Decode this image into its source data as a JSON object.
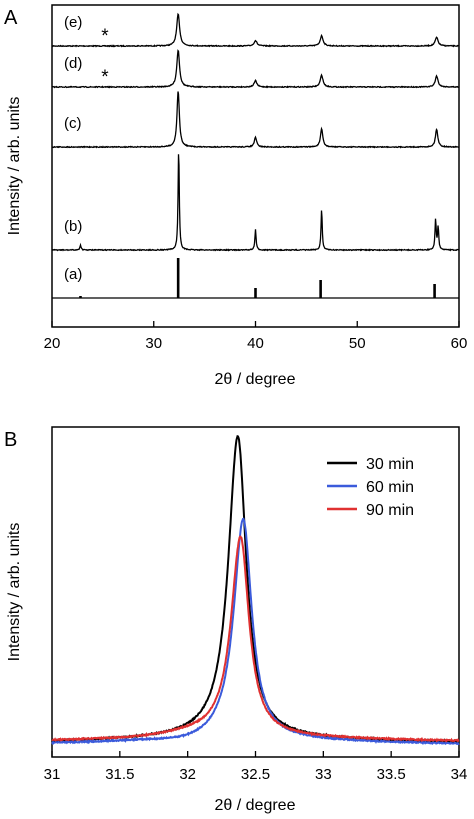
{
  "chart_data": [
    {
      "panel_label": "A",
      "type": "line",
      "xlabel": "2θ / degree",
      "ylabel": "Intensity / arb. units",
      "xlim": [
        20,
        60
      ],
      "xticks": [
        "20",
        "30",
        "40",
        "50",
        "60"
      ],
      "series": [
        {
          "name": "(e)",
          "marker": "*",
          "marker_x": 25.2,
          "peaks": [
            {
              "x": 32.4,
              "h": 1.0
            },
            {
              "x": 40.0,
              "h": 0.17
            },
            {
              "x": 46.5,
              "h": 0.32
            },
            {
              "x": 57.8,
              "h": 0.27
            }
          ],
          "width": 0.17
        },
        {
          "name": "(d)",
          "marker": "*",
          "marker_x": 25.2,
          "peaks": [
            {
              "x": 32.4,
              "h": 1.0
            },
            {
              "x": 40.0,
              "h": 0.17
            },
            {
              "x": 46.5,
              "h": 0.32
            },
            {
              "x": 57.8,
              "h": 0.3
            }
          ],
          "width": 0.16
        },
        {
          "name": "(c)",
          "marker": "",
          "peaks": [
            {
              "x": 32.4,
              "h": 1.0
            },
            {
              "x": 40.0,
              "h": 0.17
            },
            {
              "x": 46.5,
              "h": 0.32
            },
            {
              "x": 57.8,
              "h": 0.32
            }
          ],
          "width": 0.14
        },
        {
          "name": "(b)",
          "marker": "",
          "peaks": [
            {
              "x": 22.8,
              "h": 0.05
            },
            {
              "x": 32.45,
              "h": 1.0
            },
            {
              "x": 40.0,
              "h": 0.2
            },
            {
              "x": 46.5,
              "h": 0.4
            },
            {
              "x": 57.7,
              "h": 0.3
            },
            {
              "x": 57.95,
              "h": 0.22
            }
          ],
          "width": 0.07
        },
        {
          "name": "(a)",
          "marker": "",
          "sticks": [
            {
              "x": 22.8,
              "h": 0.05
            },
            {
              "x": 32.4,
              "h": 1.0
            },
            {
              "x": 40.0,
              "h": 0.25
            },
            {
              "x": 46.4,
              "h": 0.45
            },
            {
              "x": 57.6,
              "h": 0.35
            }
          ]
        }
      ]
    },
    {
      "panel_label": "B",
      "type": "line",
      "xlabel": "2θ / degree",
      "ylabel": "Intensity / arb. units",
      "xlim": [
        31,
        34
      ],
      "xticks": [
        "31",
        "31.5",
        "32",
        "32.5",
        "33",
        "33.5",
        "34"
      ],
      "legend": "top-right",
      "series": [
        {
          "name": "30 min",
          "color": "#000000",
          "center": 32.37,
          "height": 1.0,
          "base": 0.0,
          "shoulder": 0.0
        },
        {
          "name": "60 min",
          "color": "#3b5bdb",
          "center": 32.41,
          "height": 0.73,
          "base": -0.006,
          "shoulder": -0.01
        },
        {
          "name": "90 min",
          "color": "#e03131",
          "center": 32.39,
          "height": 0.66,
          "base": 0.004,
          "shoulder": 0.008
        }
      ]
    }
  ]
}
